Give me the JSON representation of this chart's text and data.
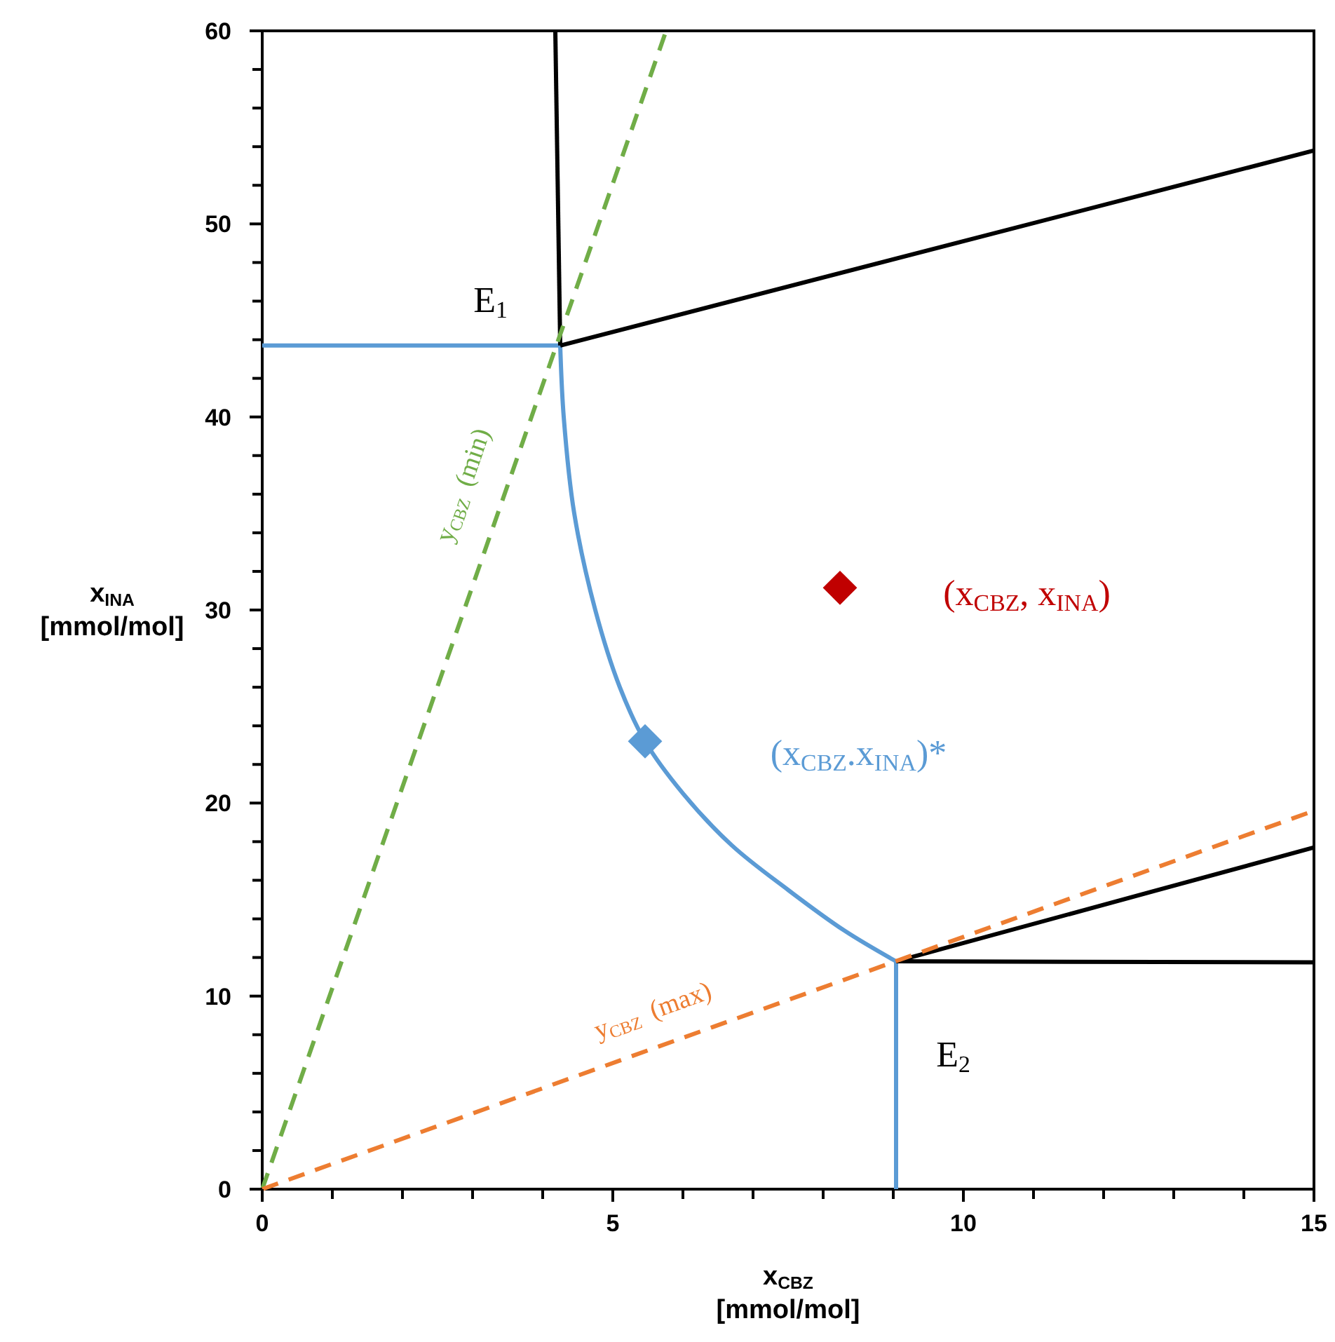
{
  "chart_data": {
    "type": "line",
    "xlabel": "x$_{CBZ}$ [mmol/mol]",
    "ylabel": "x$_{INA}$ [mmol/mol]",
    "xlim": [
      0,
      15
    ],
    "ylim": [
      0,
      60
    ],
    "xticks": [
      0,
      {
        "value": 1,
        "label": null
      },
      {
        "value": 2,
        "label": null
      },
      {
        "value": 3,
        "label": null
      },
      {
        "value": 4,
        "label": null
      },
      5,
      {
        "value": 6,
        "label": null
      },
      {
        "value": 7,
        "label": null
      },
      {
        "value": 8,
        "label": null
      },
      {
        "value": 9,
        "label": null
      },
      10,
      {
        "value": 11,
        "label": null
      },
      {
        "value": 12,
        "label": null
      },
      {
        "value": 13,
        "label": null
      },
      {
        "value": 14,
        "label": null
      },
      15
    ],
    "yticks": [
      0,
      {
        "value": 2,
        "label": null
      },
      {
        "value": 4,
        "label": null
      },
      {
        "value": 6,
        "label": null
      },
      {
        "value": 8,
        "label": null
      },
      10,
      {
        "value": 12,
        "label": null
      },
      {
        "value": 14,
        "label": null
      },
      {
        "value": 16,
        "label": null
      },
      {
        "value": 18,
        "label": null
      },
      20,
      {
        "value": 22,
        "label": null
      },
      {
        "value": 24,
        "label": null
      },
      {
        "value": 26,
        "label": null
      },
      {
        "value": 28,
        "label": null
      },
      30,
      {
        "value": 32,
        "label": null
      },
      {
        "value": 34,
        "label": null
      },
      {
        "value": 36,
        "label": null
      },
      {
        "value": 38,
        "label": null
      },
      40,
      {
        "value": 42,
        "label": null
      },
      {
        "value": 44,
        "label": null
      },
      {
        "value": 46,
        "label": null
      },
      {
        "value": 48,
        "label": null
      },
      50,
      {
        "value": 52,
        "label": null
      },
      {
        "value": 54,
        "label": null
      },
      {
        "value": 56,
        "label": null
      },
      {
        "value": 58,
        "label": null
      },
      60
    ],
    "series": [
      {
        "color": "#5b9bd5",
        "x": [
          0,
          4.25
        ],
        "values": [
          43.7,
          43.7
        ]
      },
      {
        "color": "#5b9bd5",
        "x": [
          4.25,
          4.3,
          4.45,
          4.75,
          5.1,
          5.46,
          6.0,
          6.7,
          7.5,
          8.3,
          9.04
        ],
        "values": [
          43.7,
          40,
          35,
          30,
          26,
          23.2,
          20.5,
          17.8,
          15.5,
          13.4,
          11.8
        ]
      },
      {
        "color": "#5b9bd5",
        "x": [
          9.04,
          9.04
        ],
        "values": [
          11.8,
          0
        ]
      },
      {
        "color": "#000000",
        "x": [
          4.18,
          4.25
        ],
        "values": [
          60,
          43.7
        ]
      },
      {
        "color": "#000000",
        "x": [
          4.25,
          15
        ],
        "values": [
          43.7,
          53.8
        ]
      },
      {
        "color": "#000000",
        "x": [
          9.04,
          15
        ],
        "values": [
          11.8,
          17.7
        ]
      },
      {
        "color": "#000000",
        "x": [
          9.04,
          15
        ],
        "values": [
          11.8,
          11.75
        ]
      },
      {
        "color": "#70ad47",
        "line_style": "dashed",
        "x": [
          0,
          5.76
        ],
        "values": [
          0,
          60
        ]
      },
      {
        "color": "#ed7d31",
        "line_style": "dashed",
        "x": [
          0,
          15
        ],
        "values": [
          0,
          19.6
        ]
      },
      {
        "type": "scatter",
        "marker": "diamond",
        "color": "#5b9bd5",
        "x": [
          5.46
        ],
        "values": [
          23.2
        ]
      },
      {
        "type": "scatter",
        "marker": "diamond",
        "color": "#c00000",
        "x": [
          8.24
        ],
        "values": [
          31.15
        ]
      }
    ],
    "annotations": [
      "E$_{1}$",
      "E$_{2}$",
      "y$_{CBZ}$ (min)",
      "y$_{CBZ}$ (max)",
      "(x$_{CBZ}$, x$_{INA}$)",
      "(x$_{CBZ}$.x$_{INA}$)*"
    ]
  }
}
